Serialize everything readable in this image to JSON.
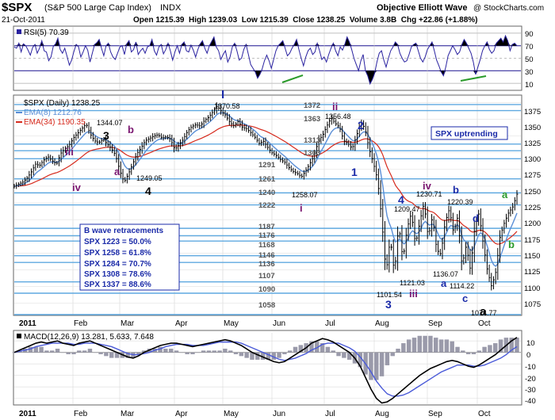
{
  "header": {
    "symbol": "$SPX",
    "name": "(S&P 500 Large Cap Index)",
    "exchange": "INDX",
    "brand": "Objective Elliott Wave",
    "watermark": "@ StockCharts.com",
    "date": "21-Oct-2011",
    "ohlc": "Open 1215.39  High 1239.03  Low 1215.39  Close 1238.25  Volume 3.8B  Chg +22.86 (+1.88%)"
  },
  "colors": {
    "price": "#000000",
    "ema8": "#5a8ed6",
    "ema34": "#d62a1d",
    "hline": "#5fa9e0",
    "wave_blue": "#1a2aa8",
    "wave_purple": "#7a1670",
    "wave_green": "#2a9a2a",
    "rsi": "#2a22a0",
    "macd_hist": "#9a9aaa"
  },
  "rsi_panel": {
    "label": "RSI(5) 70.39",
    "ticks": [
      "90",
      "70",
      "50",
      "30",
      "10"
    ],
    "chart_data": {
      "type": "line",
      "name": "RSI(5)",
      "ylim": [
        0,
        100
      ],
      "values": [
        68,
        66,
        74,
        60,
        73,
        70,
        63,
        55,
        67,
        72,
        58,
        66,
        78,
        62,
        60,
        46,
        52,
        69,
        73,
        82,
        64,
        58,
        66,
        53,
        39,
        47,
        61,
        72,
        68,
        52,
        60,
        70,
        63,
        44,
        58,
        72,
        75,
        80,
        66,
        54,
        70,
        74,
        60,
        52,
        48,
        58,
        68,
        70,
        56,
        73,
        78,
        60,
        64,
        76,
        56,
        62,
        66,
        58,
        68,
        70,
        80,
        62,
        55,
        68,
        72,
        57,
        64,
        74,
        62,
        47,
        60,
        70,
        58,
        72,
        76,
        62,
        60,
        71,
        63,
        52,
        64,
        73,
        78,
        66,
        58,
        70,
        77,
        84,
        68,
        62,
        48,
        56,
        62,
        44,
        52,
        68,
        74,
        62,
        47,
        50,
        64,
        72,
        56,
        40,
        34,
        28,
        18,
        24,
        33,
        46,
        55,
        46,
        34,
        48,
        62,
        70,
        74,
        78,
        66,
        54,
        58,
        66,
        72,
        80,
        64,
        50,
        38,
        52,
        62,
        66,
        56,
        60,
        74,
        62,
        48,
        52,
        44,
        56,
        66,
        74,
        62,
        54,
        68,
        63,
        72,
        84,
        76,
        64,
        50,
        40,
        30,
        46,
        56,
        30,
        22,
        9,
        16,
        26,
        44,
        58,
        62,
        47,
        36,
        50,
        62,
        68,
        76,
        72,
        58,
        50,
        44,
        46,
        56,
        68,
        72,
        74,
        62,
        50,
        44,
        52,
        64,
        70,
        76,
        62,
        47,
        38,
        28,
        22,
        36,
        54,
        62,
        70,
        64,
        56,
        60,
        72,
        80,
        74,
        66,
        58,
        44,
        24,
        36,
        48,
        62,
        70,
        76,
        64,
        58,
        62,
        74,
        78,
        82,
        76,
        86,
        78,
        62,
        72,
        74,
        70
      ]
    }
  },
  "price_panel": {
    "legend": {
      "price": "$SPX (Daily) 1238.25",
      "ema8": "EMA(8) 1212.76",
      "ema34": "EMA(34) 1190.35"
    },
    "status_box": "SPX uptrending",
    "retracements": {
      "title": "B wave retracements",
      "lines": [
        "SPX 1223 = 50.0%",
        "SPX 1258 = 61.8%",
        "SPX 1284 = 70.7%",
        "SPX 1308 = 78.6%",
        "SPX 1337 = 88.6%"
      ]
    },
    "level_labels": [
      "1372",
      "1363",
      "1313",
      "1303",
      "1291",
      "1261",
      "1240",
      "1222",
      "1187",
      "1176",
      "1168",
      "1146",
      "1136",
      "1107",
      "1090",
      "1058"
    ],
    "price_labels": [
      "1370.58",
      "1356.48",
      "1344.07",
      "1249.05",
      "1258.07",
      "1230.71",
      "1220.39",
      "1209.47",
      "1121.03",
      "1101.54",
      "1136.07",
      "1114.22",
      "1074.77"
    ],
    "wave_labels": [
      "I",
      "ii",
      "3",
      "b",
      "iii",
      "a",
      "iv",
      "4",
      "i",
      "2",
      "1",
      "4",
      "3",
      "iii",
      "iv",
      "b",
      "d",
      "a",
      "c",
      "a",
      "b",
      "a"
    ],
    "y_ticks": [
      "1375",
      "1350",
      "1325",
      "1300",
      "1275",
      "1250",
      "1225",
      "1200",
      "1175",
      "1150",
      "1125",
      "1100",
      "1075"
    ],
    "chart_data": {
      "type": "line",
      "name": "$SPX (Daily)",
      "ylim": [
        1058,
        1385
      ],
      "horizontal_levels": [
        1372,
        1363,
        1313,
        1303,
        1291,
        1261,
        1240,
        1222,
        1187,
        1176,
        1168,
        1146,
        1136,
        1107,
        1090,
        1058
      ],
      "points": [
        [
          0,
          1250
        ],
        [
          2,
          1253
        ],
        [
          4,
          1256
        ],
        [
          6,
          1262
        ],
        [
          8,
          1271
        ],
        [
          10,
          1283
        ],
        [
          12,
          1281
        ],
        [
          14,
          1289
        ],
        [
          16,
          1294
        ],
        [
          18,
          1288
        ],
        [
          20,
          1283
        ],
        [
          22,
          1299
        ],
        [
          24,
          1306
        ],
        [
          26,
          1311
        ],
        [
          28,
          1322
        ],
        [
          30,
          1329
        ],
        [
          32,
          1336
        ],
        [
          34,
          1343
        ],
        [
          36,
          1328
        ],
        [
          38,
          1318
        ],
        [
          40,
          1315
        ],
        [
          42,
          1320
        ],
        [
          44,
          1313
        ],
        [
          46,
          1306
        ],
        [
          48,
          1296
        ],
        [
          50,
          1273
        ],
        [
          52,
          1256
        ],
        [
          54,
          1268
        ],
        [
          56,
          1283
        ],
        [
          58,
          1298
        ],
        [
          60,
          1307
        ],
        [
          62,
          1318
        ],
        [
          64,
          1321
        ],
        [
          66,
          1325
        ],
        [
          68,
          1327
        ],
        [
          70,
          1322
        ],
        [
          72,
          1324
        ],
        [
          74,
          1320
        ],
        [
          76,
          1305
        ],
        [
          78,
          1312
        ],
        [
          80,
          1320
        ],
        [
          82,
          1332
        ],
        [
          84,
          1339
        ],
        [
          86,
          1342
        ],
        [
          88,
          1340
        ],
        [
          90,
          1348
        ],
        [
          92,
          1353
        ],
        [
          94,
          1361
        ],
        [
          96,
          1370
        ],
        [
          98,
          1362
        ],
        [
          100,
          1356
        ],
        [
          102,
          1346
        ],
        [
          104,
          1340
        ],
        [
          106,
          1347
        ],
        [
          108,
          1338
        ],
        [
          110,
          1336
        ],
        [
          112,
          1330
        ],
        [
          114,
          1323
        ],
        [
          116,
          1314
        ],
        [
          118,
          1317
        ],
        [
          120,
          1308
        ],
        [
          122,
          1300
        ],
        [
          124,
          1296
        ],
        [
          126,
          1290
        ],
        [
          128,
          1286
        ],
        [
          130,
          1278
        ],
        [
          132,
          1272
        ],
        [
          134,
          1269
        ],
        [
          136,
          1264
        ],
        [
          138,
          1273
        ],
        [
          140,
          1284
        ],
        [
          142,
          1296
        ],
        [
          144,
          1318
        ],
        [
          146,
          1326
        ],
        [
          148,
          1340
        ],
        [
          150,
          1352
        ],
        [
          152,
          1344
        ],
        [
          154,
          1338
        ],
        [
          156,
          1318
        ],
        [
          158,
          1314
        ],
        [
          160,
          1306
        ],
        [
          162,
          1325
        ],
        [
          164,
          1345
        ],
        [
          166,
          1337
        ],
        [
          168,
          1306
        ],
        [
          170,
          1285
        ],
        [
          172,
          1260
        ],
        [
          174,
          1200
        ],
        [
          176,
          1120
        ],
        [
          178,
          1172
        ],
        [
          180,
          1119
        ],
        [
          182,
          1193
        ],
        [
          184,
          1140
        ],
        [
          186,
          1187
        ],
        [
          188,
          1210
        ],
        [
          190,
          1162
        ],
        [
          192,
          1197
        ],
        [
          194,
          1225
        ],
        [
          196,
          1173
        ],
        [
          198,
          1205
        ],
        [
          200,
          1155
        ],
        [
          202,
          1148
        ],
        [
          204,
          1196
        ],
        [
          206,
          1216
        ],
        [
          208,
          1180
        ],
        [
          210,
          1205
        ],
        [
          212,
          1130
        ],
        [
          214,
          1162
        ],
        [
          216,
          1124
        ],
        [
          218,
          1188
        ],
        [
          220,
          1210
        ],
        [
          222,
          1165
        ],
        [
          224,
          1124
        ],
        [
          226,
          1100
        ],
        [
          228,
          1122
        ],
        [
          230,
          1175
        ],
        [
          232,
          1195
        ],
        [
          234,
          1210
        ],
        [
          236,
          1219
        ],
        [
          238,
          1238
        ]
      ]
    }
  },
  "macd_panel": {
    "label": "MACD(12,26,9) 13.281, 5.633, 7.648",
    "ticks": [
      "10",
      "0",
      "-10",
      "-20",
      "-30",
      "-40"
    ],
    "chart_data": {
      "type": "line",
      "ylim": [
        -45,
        17
      ],
      "macd": [
        0,
        2,
        4,
        6,
        8,
        9,
        8,
        9,
        10,
        8,
        7,
        6,
        8,
        9,
        10,
        8,
        6,
        4,
        2,
        0,
        -2,
        -4,
        -5,
        -3,
        0,
        2,
        4,
        6,
        7,
        8,
        8,
        7,
        6,
        5,
        6,
        7,
        8,
        9,
        10,
        11,
        10,
        8,
        6,
        3,
        0,
        -2,
        -4,
        -6,
        -8,
        -9,
        -8,
        -5,
        -2,
        1,
        4,
        8,
        10,
        12,
        11,
        9,
        6,
        3,
        0,
        -5,
        -12,
        -22,
        -32,
        -40,
        -44,
        -43,
        -40,
        -36,
        -32,
        -28,
        -24,
        -20,
        -17,
        -14,
        -12,
        -10,
        -8,
        -7,
        -8,
        -10,
        -12,
        -13,
        -11,
        -8,
        -5,
        -2,
        2,
        6,
        10,
        13
      ],
      "signal": [
        0,
        1,
        2,
        3,
        5,
        6,
        7,
        8,
        8,
        8,
        8,
        7,
        7,
        8,
        8,
        8,
        7,
        6,
        5,
        3,
        1,
        -1,
        -2,
        -2,
        -1,
        0,
        2,
        3,
        5,
        6,
        7,
        7,
        7,
        6,
        6,
        6,
        7,
        8,
        9,
        9,
        9,
        9,
        8,
        6,
        4,
        2,
        0,
        -2,
        -4,
        -6,
        -7,
        -6,
        -5,
        -3,
        -1,
        2,
        4,
        7,
        8,
        8,
        8,
        6,
        4,
        1,
        -4,
        -10,
        -17,
        -25,
        -31,
        -36,
        -38,
        -38,
        -37,
        -35,
        -32,
        -29,
        -26,
        -23,
        -20,
        -17,
        -15,
        -13,
        -11,
        -11,
        -11,
        -12,
        -12,
        -11,
        -9,
        -7,
        -5,
        -2,
        2,
        5
      ]
    }
  },
  "x_axis": {
    "labels": [
      "2011",
      "Feb",
      "Mar",
      "Apr",
      "May",
      "Jun",
      "Jul",
      "Aug",
      "Sep",
      "Oct"
    ],
    "bottom_labels": [
      "2011",
      "Feb",
      "Mar",
      "Apr",
      "May",
      "Jun",
      "Jul",
      "Aug",
      "Sep",
      "Oct"
    ]
  }
}
